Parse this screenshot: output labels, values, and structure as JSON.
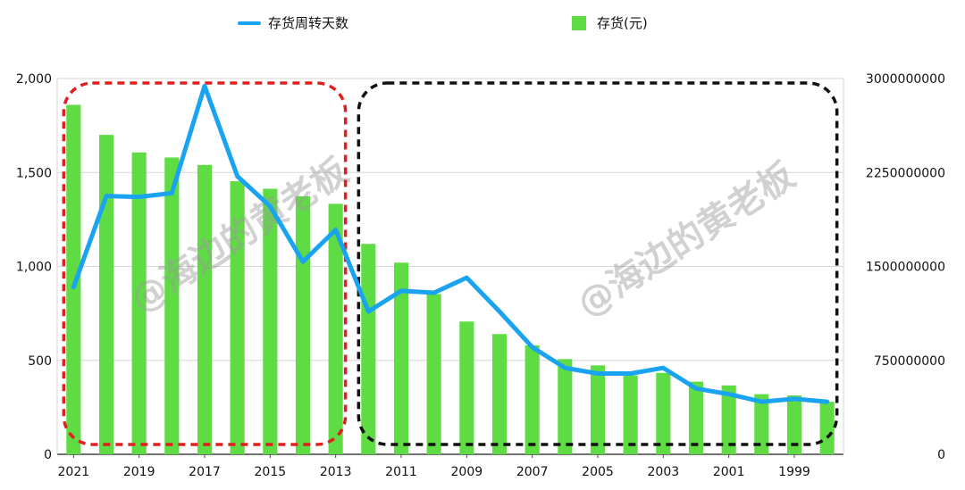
{
  "chart_data": {
    "type": "bar+line",
    "categories": [
      "2021",
      "2020",
      "2019",
      "2018",
      "2017",
      "2016",
      "2015",
      "2014",
      "2013",
      "2012",
      "2011",
      "2010",
      "2009",
      "2008",
      "2007",
      "2006",
      "2005",
      "2004",
      "2003",
      "2002",
      "2001",
      "2000",
      "1999",
      "1998"
    ],
    "x_tick_labels": [
      "2021",
      "2019",
      "2017",
      "2015",
      "2013",
      "2011",
      "2009",
      "2007",
      "2005",
      "2003",
      "2001",
      "1999"
    ],
    "series": [
      {
        "name": "存货(元)",
        "type": "bar",
        "axis": "right",
        "color": "#5fdc44",
        "values": [
          2790000000,
          2550000000,
          2410000000,
          2370000000,
          2310000000,
          2180000000,
          2120000000,
          2060000000,
          2000000000,
          1680000000,
          1530000000,
          1280000000,
          1060000000,
          960000000,
          870000000,
          760000000,
          710000000,
          630000000,
          650000000,
          580000000,
          550000000,
          480000000,
          470000000,
          420000000
        ]
      },
      {
        "name": "存货周转天数",
        "type": "line",
        "axis": "left",
        "color": "#1aa3f0",
        "values": [
          890,
          1375,
          1370,
          1390,
          1960,
          1480,
          1320,
          1025,
          1195,
          760,
          870,
          860,
          940,
          760,
          570,
          460,
          430,
          430,
          460,
          350,
          320,
          280,
          295,
          280
        ]
      }
    ],
    "y_left": {
      "min": 0,
      "max": 2000,
      "ticks": [
        "0",
        "500",
        "1,000",
        "1,500",
        "2,000"
      ]
    },
    "y_right": {
      "min": 0,
      "max": 3000000000,
      "ticks": [
        "0",
        "750000000",
        "1500000000",
        "2250000000",
        "3000000000"
      ]
    },
    "grid": true,
    "legend": "top-center",
    "annotations": [
      {
        "kind": "rounded-box",
        "style": "dashed",
        "color": "#e02020",
        "from": "2021",
        "to": "2013"
      },
      {
        "kind": "rounded-box",
        "style": "dashed",
        "color": "#111111",
        "from": "2012",
        "to": "1998"
      }
    ],
    "watermark": "@海边的黄老板"
  }
}
